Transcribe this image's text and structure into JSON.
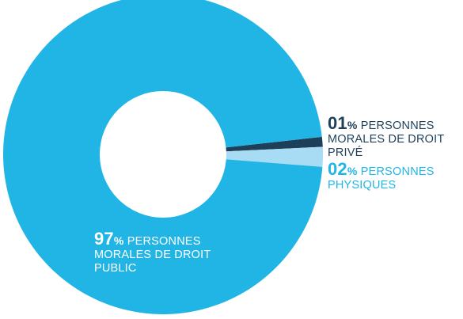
{
  "chart_data": {
    "type": "pie",
    "donut": true,
    "slices": [
      {
        "pct_text": "97",
        "percent_sign": "%",
        "label": "PERSONNES MORALES DE DROIT PUBLIC",
        "value": 97,
        "color": "#21b5e6"
      },
      {
        "pct_text": "01",
        "percent_sign": "%",
        "label": "PERSONNES MORALES DE DROIT PRIVÉ",
        "value": 1,
        "color": "#1e3f58"
      },
      {
        "pct_text": "02",
        "percent_sign": "%",
        "label": "PERSONNES PHYSIQUES",
        "value": 2,
        "color": "#a8dcf5"
      }
    ]
  },
  "labels": {
    "public": {
      "pct": "97",
      "sign": "%",
      "lines": [
        "PERSONNES",
        "MORALES DE DROIT",
        "PUBLIC"
      ]
    },
    "private": {
      "pct": "01",
      "sign": "%",
      "lines": [
        "PERSONNES",
        "MORALES DE DROIT",
        "PRIVÉ"
      ]
    },
    "physical": {
      "pct": "02",
      "sign": "%",
      "lines": [
        "PERSONNES",
        "PHYSIQUES"
      ]
    }
  }
}
